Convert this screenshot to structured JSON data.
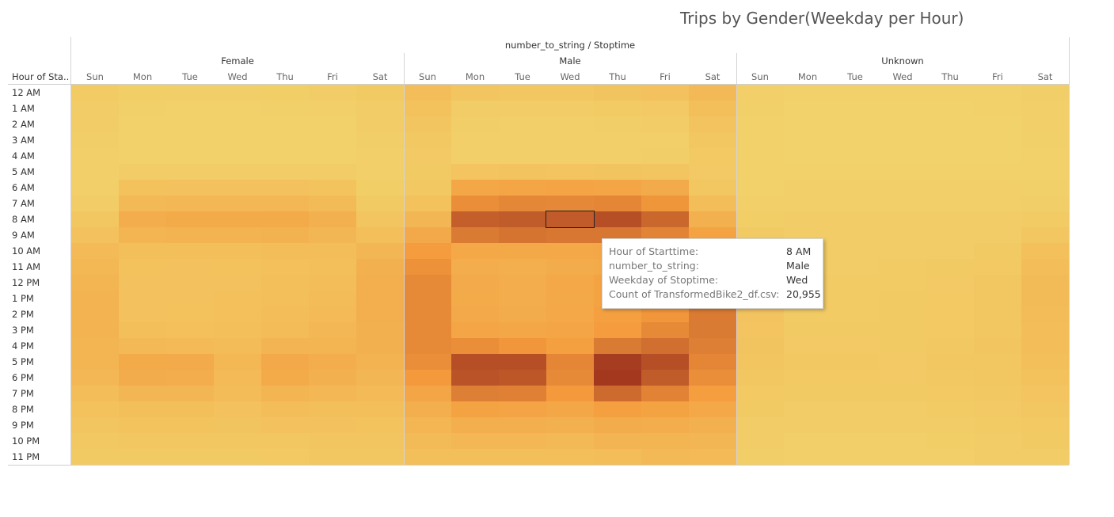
{
  "chart_data": {
    "type": "heatmap",
    "title": "Trips by Gender(Weekday per Hour)",
    "column_field": "number_to_string / Stoptime",
    "row_header": "Hour of Sta..",
    "groups": [
      "Female",
      "Male",
      "Unknown"
    ],
    "days": [
      "Sun",
      "Mon",
      "Tue",
      "Wed",
      "Thu",
      "Fri",
      "Sat"
    ],
    "hours": [
      "12 AM",
      "1 AM",
      "2 AM",
      "3 AM",
      "4 AM",
      "5 AM",
      "6 AM",
      "7 AM",
      "8 AM",
      "9 AM",
      "10 AM",
      "11 AM",
      "12 PM",
      "1 PM",
      "2 PM",
      "3 PM",
      "4 PM",
      "5 PM",
      "6 PM",
      "7 PM",
      "8 PM",
      "9 PM",
      "10 PM",
      "11 PM"
    ],
    "values": {
      "Female": [
        [
          1600,
          1000,
          900,
          900,
          1000,
          1100,
          1800
        ],
        [
          1300,
          500,
          400,
          400,
          500,
          600,
          1400
        ],
        [
          1100,
          300,
          300,
          300,
          300,
          400,
          1100
        ],
        [
          900,
          200,
          200,
          200,
          200,
          300,
          900
        ],
        [
          700,
          300,
          300,
          300,
          300,
          300,
          700
        ],
        [
          600,
          1200,
          1200,
          1200,
          1200,
          1100,
          700
        ],
        [
          800,
          3800,
          4000,
          4000,
          3900,
          3500,
          1000
        ],
        [
          1300,
          5800,
          6100,
          6000,
          6100,
          5300,
          1800
        ],
        [
          2500,
          8500,
          9000,
          9000,
          9400,
          7800,
          3000
        ],
        [
          4000,
          7000,
          7300,
          7300,
          7500,
          6500,
          4500
        ],
        [
          5600,
          4400,
          4300,
          4400,
          4600,
          4600,
          6500
        ],
        [
          6300,
          3800,
          3700,
          3800,
          4100,
          4400,
          7800
        ],
        [
          7000,
          3900,
          3600,
          3900,
          4300,
          4900,
          8400
        ],
        [
          7200,
          4000,
          3700,
          4100,
          4500,
          5100,
          8300
        ],
        [
          7200,
          4000,
          3800,
          4100,
          4600,
          5500,
          8300
        ],
        [
          7100,
          4300,
          4200,
          4400,
          5000,
          6000,
          8000
        ],
        [
          7000,
          5700,
          5600,
          5200,
          6700,
          7000,
          7800
        ],
        [
          6800,
          9300,
          9200,
          6300,
          9500,
          8500,
          7200
        ],
        [
          6000,
          8800,
          8600,
          5600,
          9000,
          7900,
          6500
        ],
        [
          4800,
          6500,
          6400,
          5200,
          7000,
          6200,
          5500
        ],
        [
          3800,
          4500,
          4400,
          4000,
          4600,
          4500,
          4300
        ],
        [
          3000,
          3500,
          3500,
          3200,
          3700,
          3700,
          3500
        ],
        [
          2400,
          2700,
          2800,
          2700,
          2900,
          3100,
          3000
        ],
        [
          1900,
          1800,
          1900,
          1900,
          2100,
          2700,
          2600
        ]
      ],
      "Male": [
        [
          4700,
          3000,
          2600,
          2800,
          3200,
          3900,
          5700
        ],
        [
          3800,
          1500,
          1300,
          1400,
          1600,
          2000,
          4300
        ],
        [
          3000,
          900,
          800,
          800,
          900,
          1200,
          3400
        ],
        [
          2400,
          600,
          600,
          600,
          600,
          800,
          2700
        ],
        [
          2000,
          800,
          800,
          800,
          800,
          900,
          2100
        ],
        [
          1800,
          3300,
          3400,
          3300,
          3200,
          3000,
          2000
        ],
        [
          2400,
          10000,
          10500,
          10600,
          10300,
          9200,
          2700
        ],
        [
          3800,
          14500,
          15400,
          15300,
          15500,
          13700,
          4800
        ],
        [
          6500,
          20500,
          21000,
          20955,
          22500,
          19500,
          8000
        ],
        [
          9500,
          17000,
          17800,
          17400,
          17400,
          15800,
          11000
        ],
        [
          12500,
          9800,
          9600,
          9800,
          10000,
          10200,
          14000
        ],
        [
          14000,
          8600,
          8200,
          8800,
          9400,
          9900,
          16000
        ],
        [
          15000,
          9200,
          8600,
          9800,
          11000,
          12000,
          17000
        ],
        [
          15000,
          9300,
          8700,
          9600,
          11000,
          12500,
          17000
        ],
        [
          15000,
          9500,
          8900,
          9800,
          11500,
          13500,
          17000
        ],
        [
          15000,
          10500,
          10000,
          10300,
          12500,
          15000,
          17000
        ],
        [
          15000,
          14500,
          13500,
          11500,
          17000,
          18500,
          16500
        ],
        [
          14500,
          22500,
          22500,
          15500,
          25000,
          22500,
          15500
        ],
        [
          13000,
          22000,
          21500,
          15000,
          25500,
          21000,
          14500
        ],
        [
          10500,
          16500,
          16300,
          13000,
          19000,
          16000,
          12000
        ],
        [
          8200,
          11000,
          10700,
          10000,
          11500,
          11000,
          9800
        ],
        [
          6600,
          8300,
          8100,
          7800,
          8800,
          8500,
          8000
        ],
        [
          5400,
          6200,
          6100,
          5900,
          6700,
          6900,
          6500
        ],
        [
          4400,
          4400,
          4400,
          4400,
          4800,
          5800,
          5600
        ]
      ],
      "Unknown": [
        [
          600,
          200,
          200,
          200,
          200,
          300,
          900
        ],
        [
          500,
          100,
          100,
          100,
          100,
          200,
          700
        ],
        [
          400,
          100,
          100,
          100,
          100,
          100,
          600
        ],
        [
          300,
          100,
          100,
          100,
          100,
          100,
          500
        ],
        [
          300,
          100,
          100,
          100,
          100,
          100,
          400
        ],
        [
          300,
          200,
          200,
          200,
          200,
          200,
          400
        ],
        [
          400,
          600,
          600,
          600,
          600,
          600,
          500
        ],
        [
          600,
          800,
          800,
          800,
          800,
          800,
          900
        ],
        [
          1000,
          1100,
          1100,
          1100,
          1100,
          1100,
          1600
        ],
        [
          1800,
          1200,
          1200,
          1200,
          1200,
          1300,
          2800
        ],
        [
          2800,
          1300,
          1300,
          1400,
          1500,
          1800,
          4200
        ],
        [
          3300,
          1500,
          1500,
          1600,
          1800,
          2200,
          4800
        ],
        [
          3500,
          1600,
          1600,
          1700,
          2000,
          2500,
          5400
        ],
        [
          3500,
          1700,
          1600,
          1800,
          2100,
          2700,
          5300
        ],
        [
          3400,
          1700,
          1700,
          1800,
          2200,
          2800,
          5000
        ],
        [
          3300,
          1800,
          1800,
          1800,
          2200,
          2900,
          4800
        ],
        [
          3200,
          2000,
          2000,
          1900,
          2400,
          3000,
          4600
        ],
        [
          3000,
          2300,
          2300,
          2000,
          2500,
          2900,
          4300
        ],
        [
          2600,
          2200,
          2200,
          2000,
          2400,
          2700,
          3800
        ],
        [
          2200,
          1900,
          1900,
          1800,
          2100,
          2400,
          3300
        ],
        [
          1800,
          1500,
          1500,
          1500,
          1700,
          2000,
          2700
        ],
        [
          1400,
          1100,
          1100,
          1100,
          1300,
          1600,
          2200
        ],
        [
          1100,
          800,
          800,
          800,
          1000,
          1300,
          1800
        ],
        [
          900,
          600,
          600,
          600,
          700,
          1100,
          1500
        ]
      ]
    },
    "color_scale": {
      "low": "#f2d26b",
      "mid": "#f49a3c",
      "high": "#a0341e",
      "max_value": 26000
    },
    "highlight": {
      "group": "Male",
      "day": "Wed",
      "hour": "8 AM"
    }
  },
  "tooltip": {
    "rows": [
      {
        "key": "Hour of Starttime:",
        "value": "8 AM"
      },
      {
        "key": "number_to_string:",
        "value": "Male"
      },
      {
        "key": "Weekday of Stoptime:",
        "value": "Wed"
      },
      {
        "key": "Count of TransformedBike2_df.csv:",
        "value": "20,955"
      }
    ]
  }
}
